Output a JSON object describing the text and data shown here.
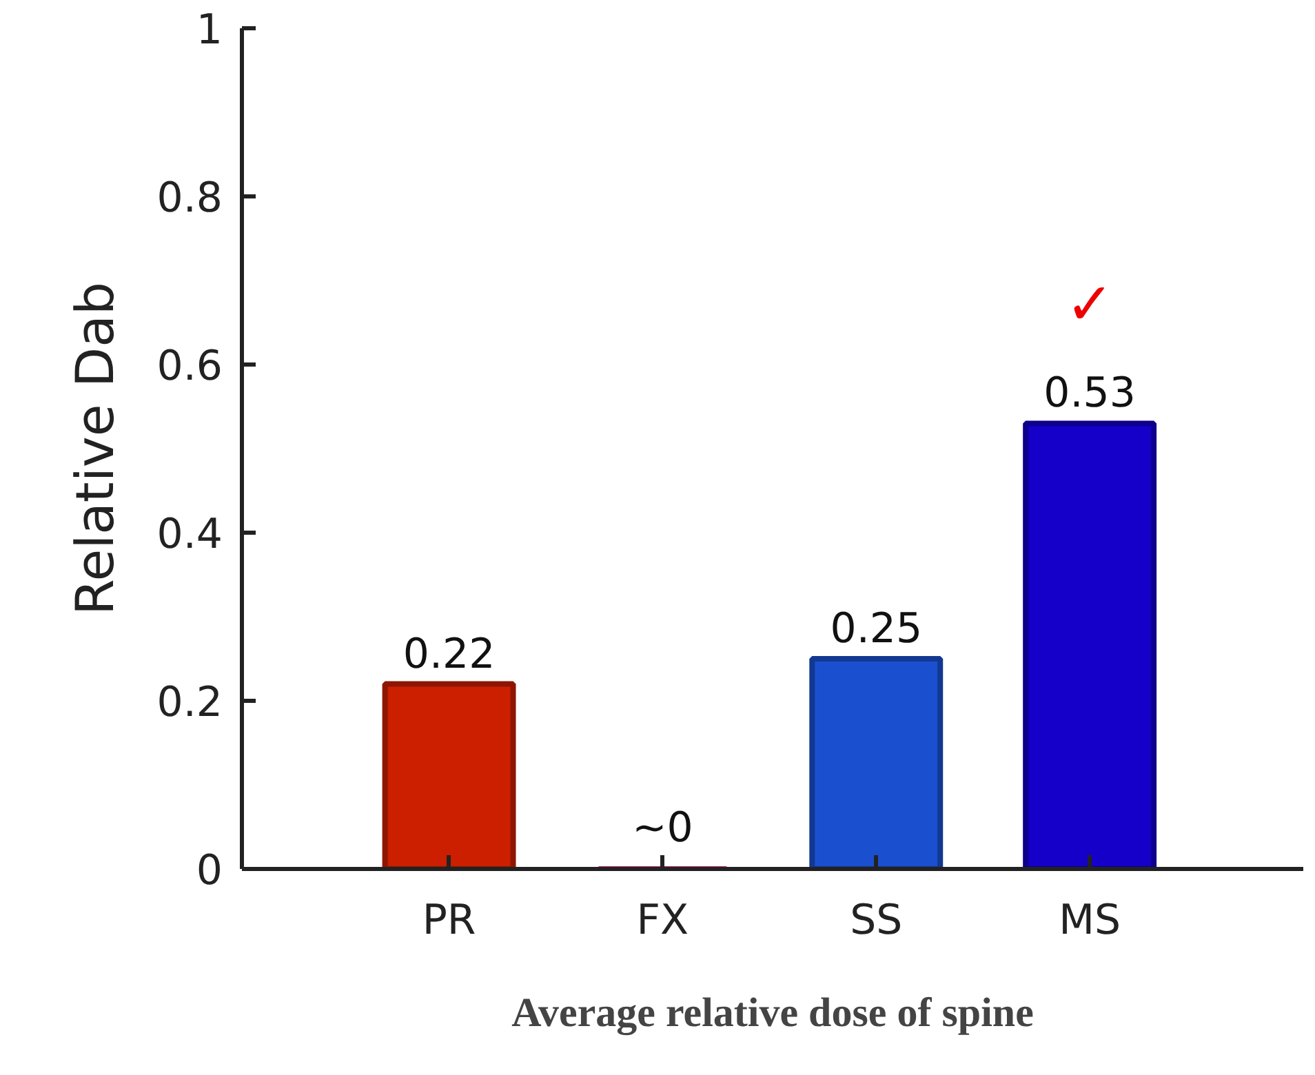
{
  "chart_data": {
    "type": "bar",
    "xlabel": "Average relative dose of spine",
    "ylabel": "Relative Dab",
    "categories": [
      "PR",
      "FX",
      "SS",
      "MS"
    ],
    "values": [
      0.22,
      0,
      0.25,
      0.53
    ],
    "colors": [
      "#cc1f00",
      "#c8207a",
      "#1a50d0",
      "#1400c8"
    ],
    "value_labels": [
      "0.22",
      "~0",
      "0.25",
      "0.53"
    ],
    "annotations": [
      "✓"
    ],
    "ylim": [
      0,
      1
    ],
    "yticks": [
      0,
      0.2,
      0.4,
      0.6,
      0.8,
      1
    ],
    "grid": false
  }
}
